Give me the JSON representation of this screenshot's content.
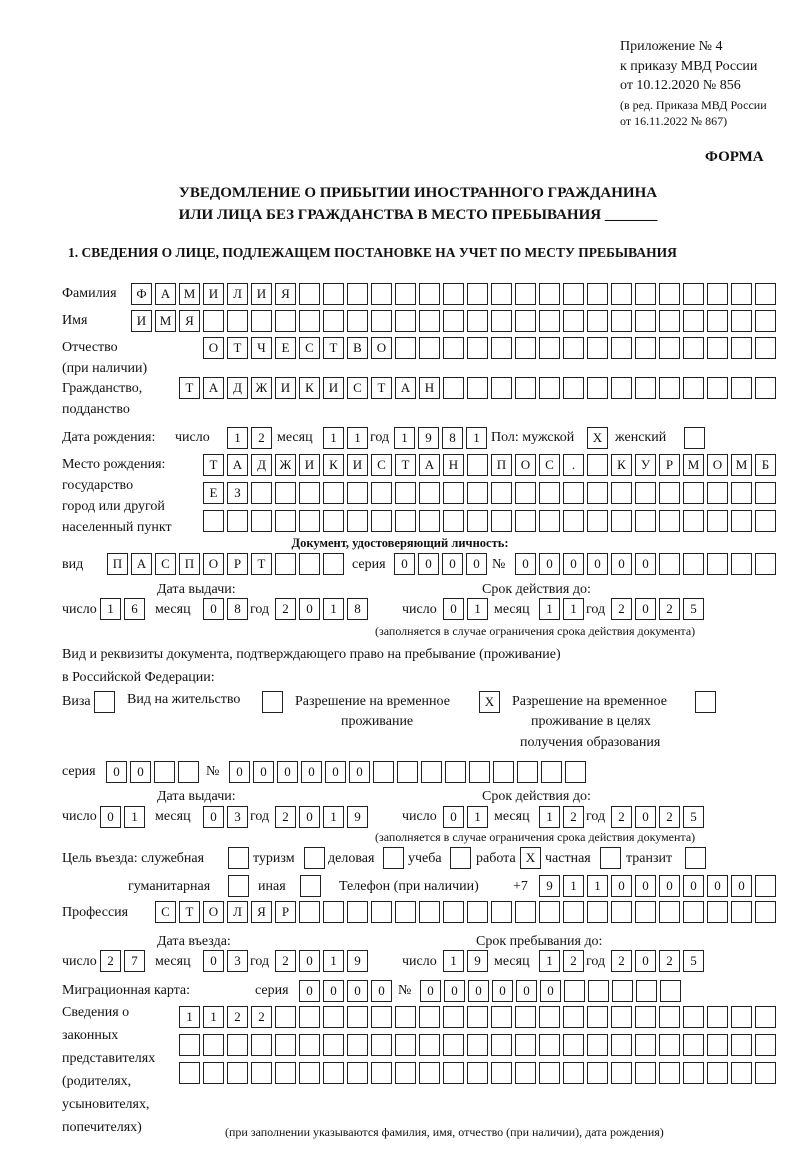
{
  "header": {
    "line1": "Приложение № 4",
    "line2": "к приказу МВД России",
    "line3": "от 10.12.2020 № 856",
    "line4": "(в ред. Приказа МВД России",
    "line5": "от 16.11.2022 № 867)",
    "forma": "ФОРМА"
  },
  "title": {
    "line1": "УВЕДОМЛЕНИЕ О ПРИБЫТИИ ИНОСТРАННОГО ГРАЖДАНИНА",
    "line2": "ИЛИ ЛИЦА БЕЗ ГРАЖДАНСТВА В МЕСТО ПРЕБЫВАНИЯ _______"
  },
  "section1": {
    "heading": "1. СВЕДЕНИЯ О ЛИЦЕ, ПОДЛЕЖАЩЕМ ПОСТАНОВКЕ НА УЧЕТ ПО МЕСТУ ПРЕБЫВАНИЯ",
    "labels": {
      "surname": "Фамилия",
      "name": "Имя",
      "patronymic": "Отчество",
      "patronymic_note": "(при наличии)",
      "citizenship": "Гражданство,",
      "citizenship2": "подданство",
      "birth_date": "Дата рождения:",
      "day": "число",
      "month": "месяц",
      "year": "год",
      "sex": "Пол: мужской",
      "female": "женский",
      "birth_place": "Место рождения:",
      "birth_place2": "государство",
      "birth_place3": "город или другой",
      "birth_place4": "населенный пункт",
      "id_doc": "Документ, удостоверяющий личность:",
      "kind": "вид",
      "series": "серия",
      "number": "№",
      "issue_date": "Дата выдачи:",
      "valid_until": "Срок действия до:",
      "validity_note": "(заполняется в случае ограничения срока действия документа)",
      "stay_doc": "Вид и реквизиты документа, подтверждающего право на пребывание (проживание)",
      "stay_doc2": "в Российской Федерации:",
      "visa": "Виза",
      "residence_permit": "Вид на жительство",
      "temp_residence": "Разрешение на временное",
      "temp_residence2": "проживание",
      "temp_residence_edu": "Разрешение на временное",
      "temp_residence_edu2": "проживание в целях",
      "temp_residence_edu3": "получения образования",
      "purpose": "Цель въезда: служебная",
      "tourism": "туризм",
      "business": "деловая",
      "study": "учеба",
      "work": "работа",
      "private": "частная",
      "transit": "транзит",
      "humanitarian": "гуманитарная",
      "other": "иная",
      "phone": "Телефон (при наличии)",
      "phone_prefix": "+7",
      "profession": "Профессия",
      "entry_date": "Дата въезда:",
      "stay_until": "Срок пребывания до:",
      "migration_card": "Миграционная карта:",
      "reps1": "Сведения о",
      "reps2": "законных",
      "reps3": "представителях",
      "reps4": "(родителях,",
      "reps5": "усыновителях,",
      "reps6": "попечителях)",
      "reps_note": "(при заполнении указываются фамилия, имя, отчество (при наличии), дата рождения)"
    },
    "values": {
      "surname": "ФАМИЛИЯ",
      "name": "ИМЯ",
      "patronymic": "ОТЧЕСТВО",
      "citizenship": "ТАДЖИКИСТАН",
      "birth_day": "12",
      "birth_month": "11",
      "birth_year": "1981",
      "sex_male": "X",
      "sex_female": "",
      "birth_place_1": "ТАДЖИКИСТАН ПОС. КУРМОМБ",
      "birth_place_2": "ЕЗ",
      "birth_place_3": "",
      "id_kind": "ПАСПОРТ",
      "id_series": "0000",
      "id_number": "000000",
      "id_issue_day": "16",
      "id_issue_month": "08",
      "id_issue_year": "2018",
      "id_valid_day": "01",
      "id_valid_month": "11",
      "id_valid_year": "2025",
      "visa": "",
      "residence_permit": "",
      "temp_residence": "X",
      "temp_residence_edu": "",
      "stay_series": "00",
      "stay_number": "000000",
      "stay_issue_day": "01",
      "stay_issue_month": "03",
      "stay_issue_year": "2019",
      "stay_valid_day": "01",
      "stay_valid_month": "12",
      "stay_valid_year": "2025",
      "purpose_official": "",
      "purpose_tourism": "",
      "purpose_business": "",
      "purpose_study": "",
      "purpose_work": "X",
      "purpose_private": "",
      "purpose_transit": "",
      "purpose_humanitarian": "",
      "purpose_other": "",
      "phone": "911000000",
      "profession": "СТОЛЯР",
      "entry_day": "27",
      "entry_month": "03",
      "entry_year": "2019",
      "stay_until_day": "19",
      "stay_until_month": "12",
      "stay_until_year": "2025",
      "mc_series": "0000",
      "mc_number": "000000",
      "reps_1": "1122",
      "reps_2": "",
      "reps_3": ""
    }
  }
}
